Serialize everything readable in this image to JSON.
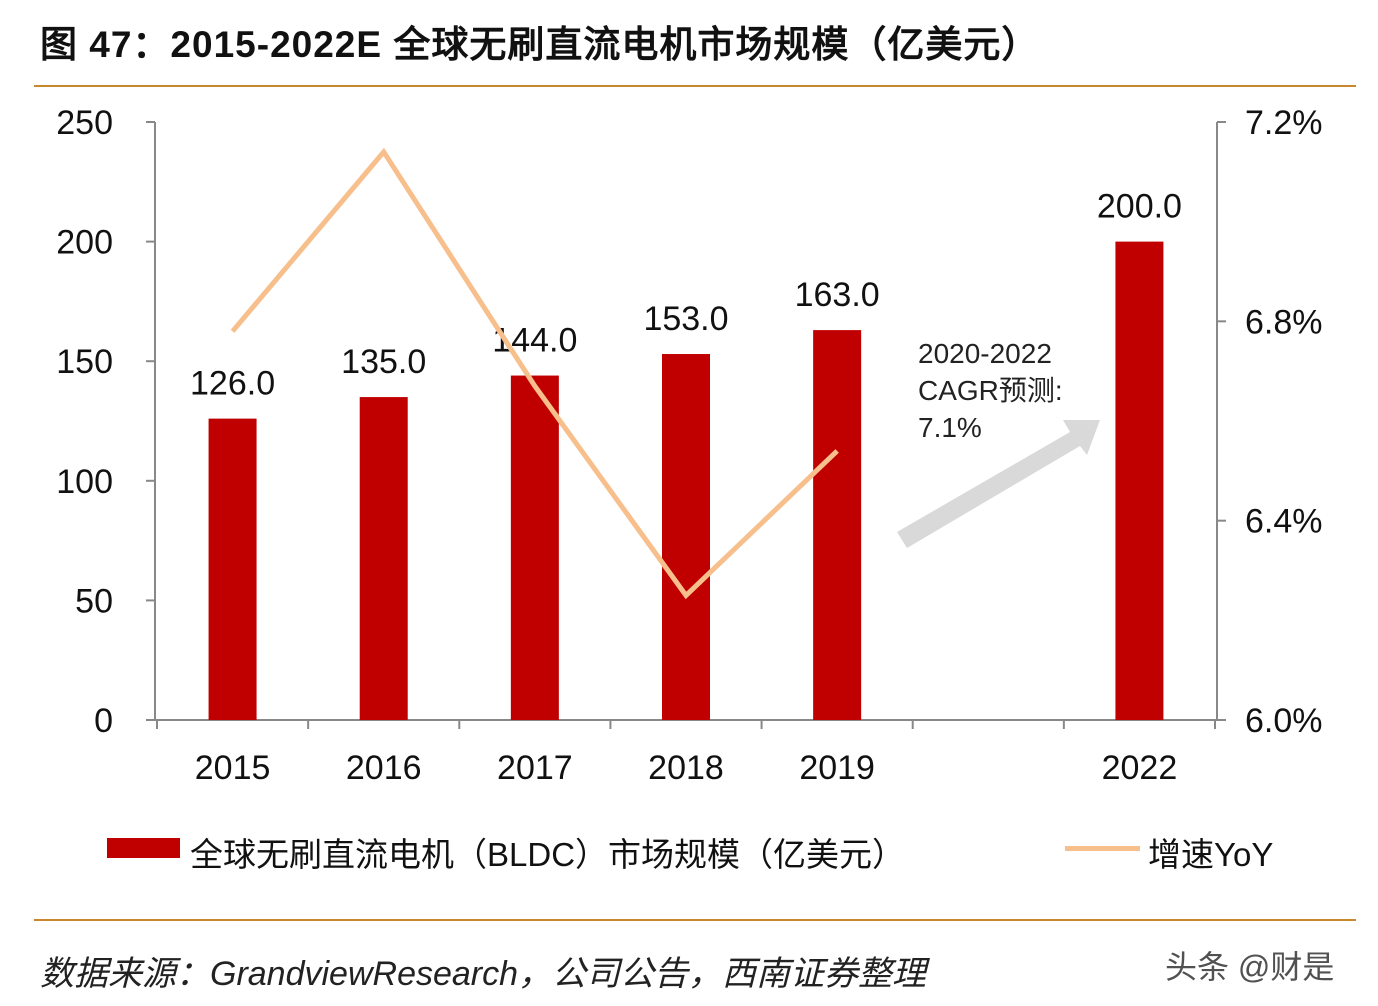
{
  "title": "图 47：2015-2022E 全球无刷直流电机市场规模（亿美元）",
  "chart_data": {
    "type": "bar+line",
    "categories": [
      "2015",
      "2016",
      "2017",
      "2018",
      "2019",
      "",
      "2022"
    ],
    "series": [
      {
        "name": "全球无刷直流电机（BLDC）市场规模（亿美元）",
        "type": "bar",
        "axis": "left",
        "color": "#c00000",
        "values": [
          126.0,
          135.0,
          144.0,
          153.0,
          163.0,
          null,
          200.0
        ],
        "labels": [
          "126.0",
          "135.0",
          "144.0",
          "153.0",
          "163.0",
          "",
          "200.0"
        ]
      },
      {
        "name": "增速YoY",
        "type": "line",
        "axis": "right",
        "color": "#f7bf8b",
        "values": [
          6.78,
          7.14,
          6.67,
          6.25,
          6.54,
          null,
          null
        ]
      }
    ],
    "y_left": {
      "range": [
        0,
        250
      ],
      "ticks": [
        "0",
        "50",
        "100",
        "150",
        "200",
        "250"
      ]
    },
    "y_right": {
      "range": [
        6.0,
        7.2
      ],
      "ticks": [
        "6.0%",
        "6.4%",
        "6.8%",
        "7.2%"
      ]
    },
    "annotation": {
      "lines": [
        "2020-2022",
        "CAGR预测:",
        "7.1%"
      ],
      "arrow_color": "#d9d9d9"
    },
    "legend_placement": "bottom",
    "grid": false
  },
  "legend": {
    "bar_label": "全球无刷直流电机（BLDC）市场规模（亿美元）",
    "line_label": "增速YoY"
  },
  "source": "数据来源：GrandviewResearch，公司公告，西南证券整理",
  "watermark": "头条 @财是"
}
